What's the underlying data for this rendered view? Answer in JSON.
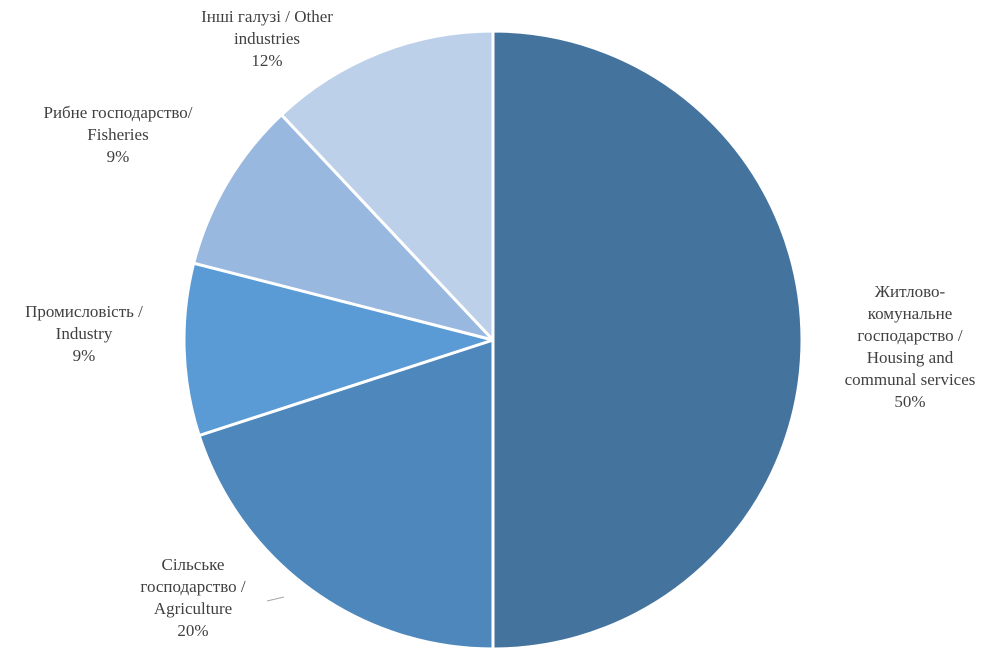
{
  "chart_data": {
    "type": "pie",
    "title": "",
    "slices": [
      {
        "lines": [
          "Житлово-",
          "комунальне",
          "господарство /",
          "Housing and",
          "communal services"
        ],
        "value": 50,
        "value_label": "50%",
        "color": "#44739e"
      },
      {
        "lines": [
          "Сільське",
          "господарство /",
          "Agriculture"
        ],
        "value": 20,
        "value_label": "20%",
        "color": "#4d87bb"
      },
      {
        "lines": [
          "Промисловість /",
          "Industry"
        ],
        "value": 9,
        "value_label": "9%",
        "color": "#5a9ad5"
      },
      {
        "lines": [
          "Рибне господарство/",
          "Fisheries"
        ],
        "value": 9,
        "value_label": "9%",
        "color": "#98b8df"
      },
      {
        "lines": [
          "Інші галузі / Other",
          "industries"
        ],
        "value": 12,
        "value_label": "12%",
        "color": "#bdd0ea"
      }
    ]
  }
}
